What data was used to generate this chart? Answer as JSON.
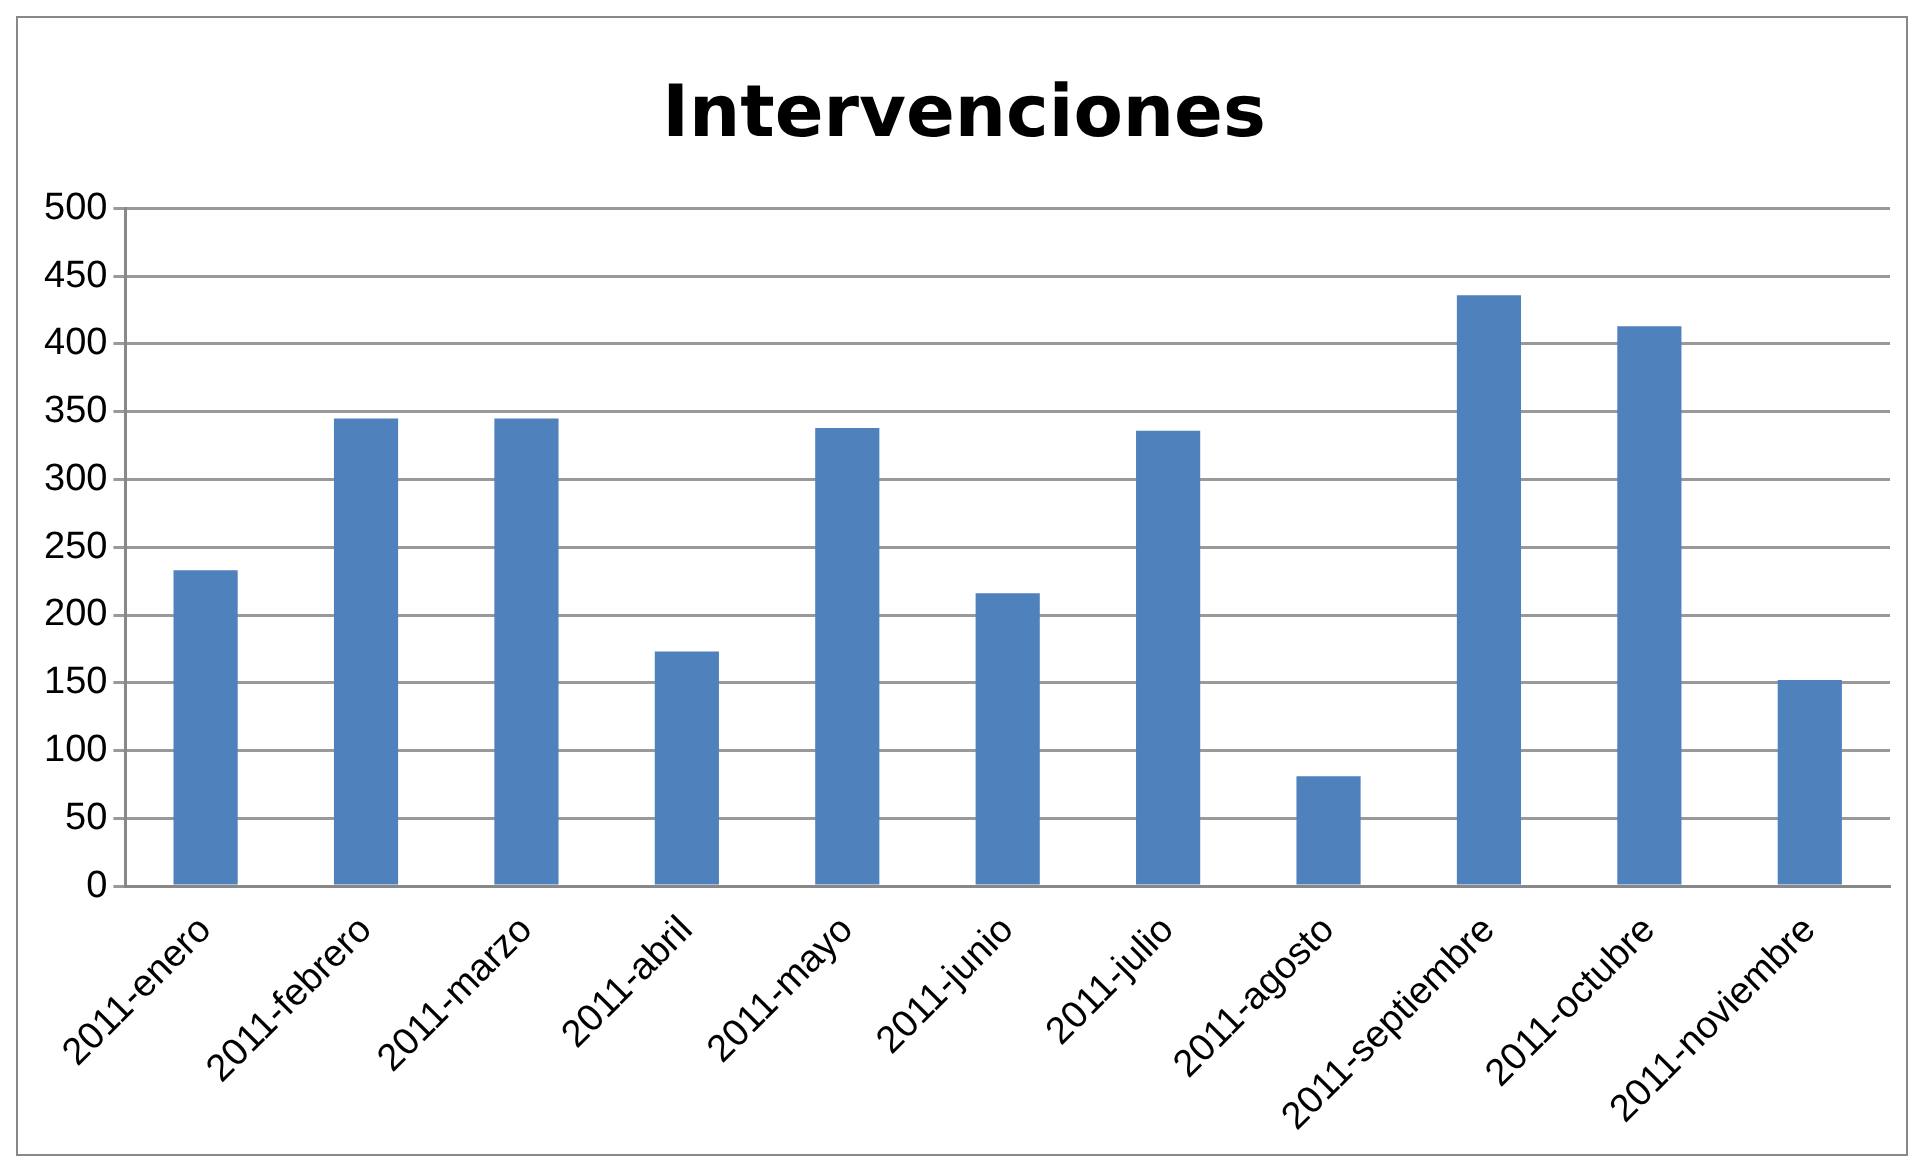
{
  "chart_data": {
    "type": "bar",
    "title": "Intervenciones",
    "categories": [
      "2011-enero",
      "2011-febrero",
      "2011-marzo",
      "2011-abril",
      "2011-mayo",
      "2011-junio",
      "2011-julio",
      "2011-agosto",
      "2011-septiembre",
      "2011-octubre",
      "2011-noviembre"
    ],
    "values": [
      233,
      345,
      345,
      173,
      338,
      216,
      336,
      81,
      436,
      413,
      152
    ],
    "color": "#4f81bd",
    "ylim": [
      0,
      500
    ],
    "yticks": [
      0,
      50,
      100,
      150,
      200,
      250,
      300,
      350,
      400,
      450,
      500
    ],
    "grid": "y",
    "legend": false
  }
}
